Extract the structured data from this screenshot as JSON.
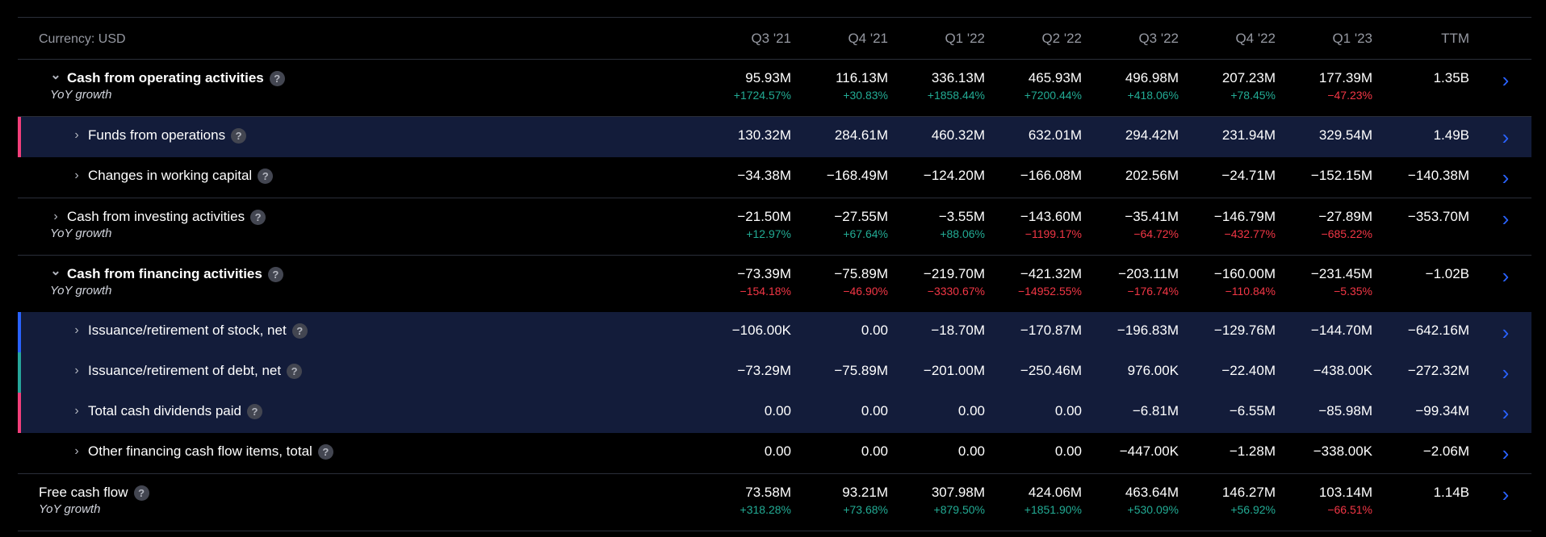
{
  "currency_label": "Currency: USD",
  "periods": [
    "Q3 '21",
    "Q4 '21",
    "Q1 '22",
    "Q2 '22",
    "Q3 '22",
    "Q4 '22",
    "Q1 '23",
    "TTM"
  ],
  "accent_colors": {
    "blue": "#2962ff",
    "pos": "#22ab94",
    "neg": "#f23645",
    "pink": "#f23e7a",
    "teal": "#26a69a",
    "bluebar": "#2962ff"
  },
  "rows": [
    {
      "label": "Cash from operating activities",
      "expanded": true,
      "level": 0,
      "bold": true,
      "yoy_label": "YoY growth",
      "values": [
        "95.93M",
        "116.13M",
        "336.13M",
        "465.93M",
        "496.98M",
        "207.23M",
        "177.39M",
        "1.35B"
      ],
      "growth": [
        "+1724.57%",
        "+30.83%",
        "+1858.44%",
        "+7200.44%",
        "+418.06%",
        "+78.45%",
        "−47.23%",
        ""
      ]
    },
    {
      "label": "Funds from operations",
      "level": 1,
      "highlight": true,
      "bar_color": "#f23e7a",
      "values": [
        "130.32M",
        "284.61M",
        "460.32M",
        "632.01M",
        "294.42M",
        "231.94M",
        "329.54M",
        "1.49B"
      ]
    },
    {
      "label": "Changes in working capital",
      "level": 1,
      "values": [
        "−34.38M",
        "−168.49M",
        "−124.20M",
        "−166.08M",
        "202.56M",
        "−24.71M",
        "−152.15M",
        "−140.38M"
      ]
    },
    {
      "label": "Cash from investing activities",
      "expanded": false,
      "level": 0,
      "yoy_label": "YoY growth",
      "values": [
        "−21.50M",
        "−27.55M",
        "−3.55M",
        "−143.60M",
        "−35.41M",
        "−146.79M",
        "−27.89M",
        "−353.70M"
      ],
      "growth": [
        "+12.97%",
        "+67.64%",
        "+88.06%",
        "−1199.17%",
        "−64.72%",
        "−432.77%",
        "−685.22%",
        ""
      ]
    },
    {
      "label": "Cash from financing activities",
      "expanded": true,
      "level": 0,
      "bold": true,
      "yoy_label": "YoY growth",
      "values": [
        "−73.39M",
        "−75.89M",
        "−219.70M",
        "−421.32M",
        "−203.11M",
        "−160.00M",
        "−231.45M",
        "−1.02B"
      ],
      "growth": [
        "−154.18%",
        "−46.90%",
        "−3330.67%",
        "−14952.55%",
        "−176.74%",
        "−110.84%",
        "−5.35%",
        ""
      ]
    },
    {
      "label": "Issuance/retirement of stock, net",
      "level": 1,
      "highlight": true,
      "bar_color": "#2962ff",
      "values": [
        "−106.00K",
        "0.00",
        "−18.70M",
        "−170.87M",
        "−196.83M",
        "−129.76M",
        "−144.70M",
        "−642.16M"
      ]
    },
    {
      "label": "Issuance/retirement of debt, net",
      "level": 1,
      "highlight": true,
      "bar_color": "#26a69a",
      "values": [
        "−73.29M",
        "−75.89M",
        "−201.00M",
        "−250.46M",
        "976.00K",
        "−22.40M",
        "−438.00K",
        "−272.32M"
      ]
    },
    {
      "label": "Total cash dividends paid",
      "level": 1,
      "highlight": true,
      "bar_color": "#f23e7a",
      "values": [
        "0.00",
        "0.00",
        "0.00",
        "0.00",
        "−6.81M",
        "−6.55M",
        "−85.98M",
        "−99.34M"
      ]
    },
    {
      "label": "Other financing cash flow items, total",
      "level": 1,
      "values": [
        "0.00",
        "0.00",
        "0.00",
        "0.00",
        "−447.00K",
        "−1.28M",
        "−338.00K",
        "−2.06M"
      ]
    },
    {
      "label": "Free cash flow",
      "level": -1,
      "yoy_label": "YoY growth",
      "values": [
        "73.58M",
        "93.21M",
        "307.98M",
        "424.06M",
        "463.64M",
        "146.27M",
        "103.14M",
        "1.14B"
      ],
      "growth": [
        "+318.28%",
        "+73.68%",
        "+879.50%",
        "+1851.90%",
        "+530.09%",
        "+56.92%",
        "−66.51%",
        ""
      ]
    }
  ]
}
